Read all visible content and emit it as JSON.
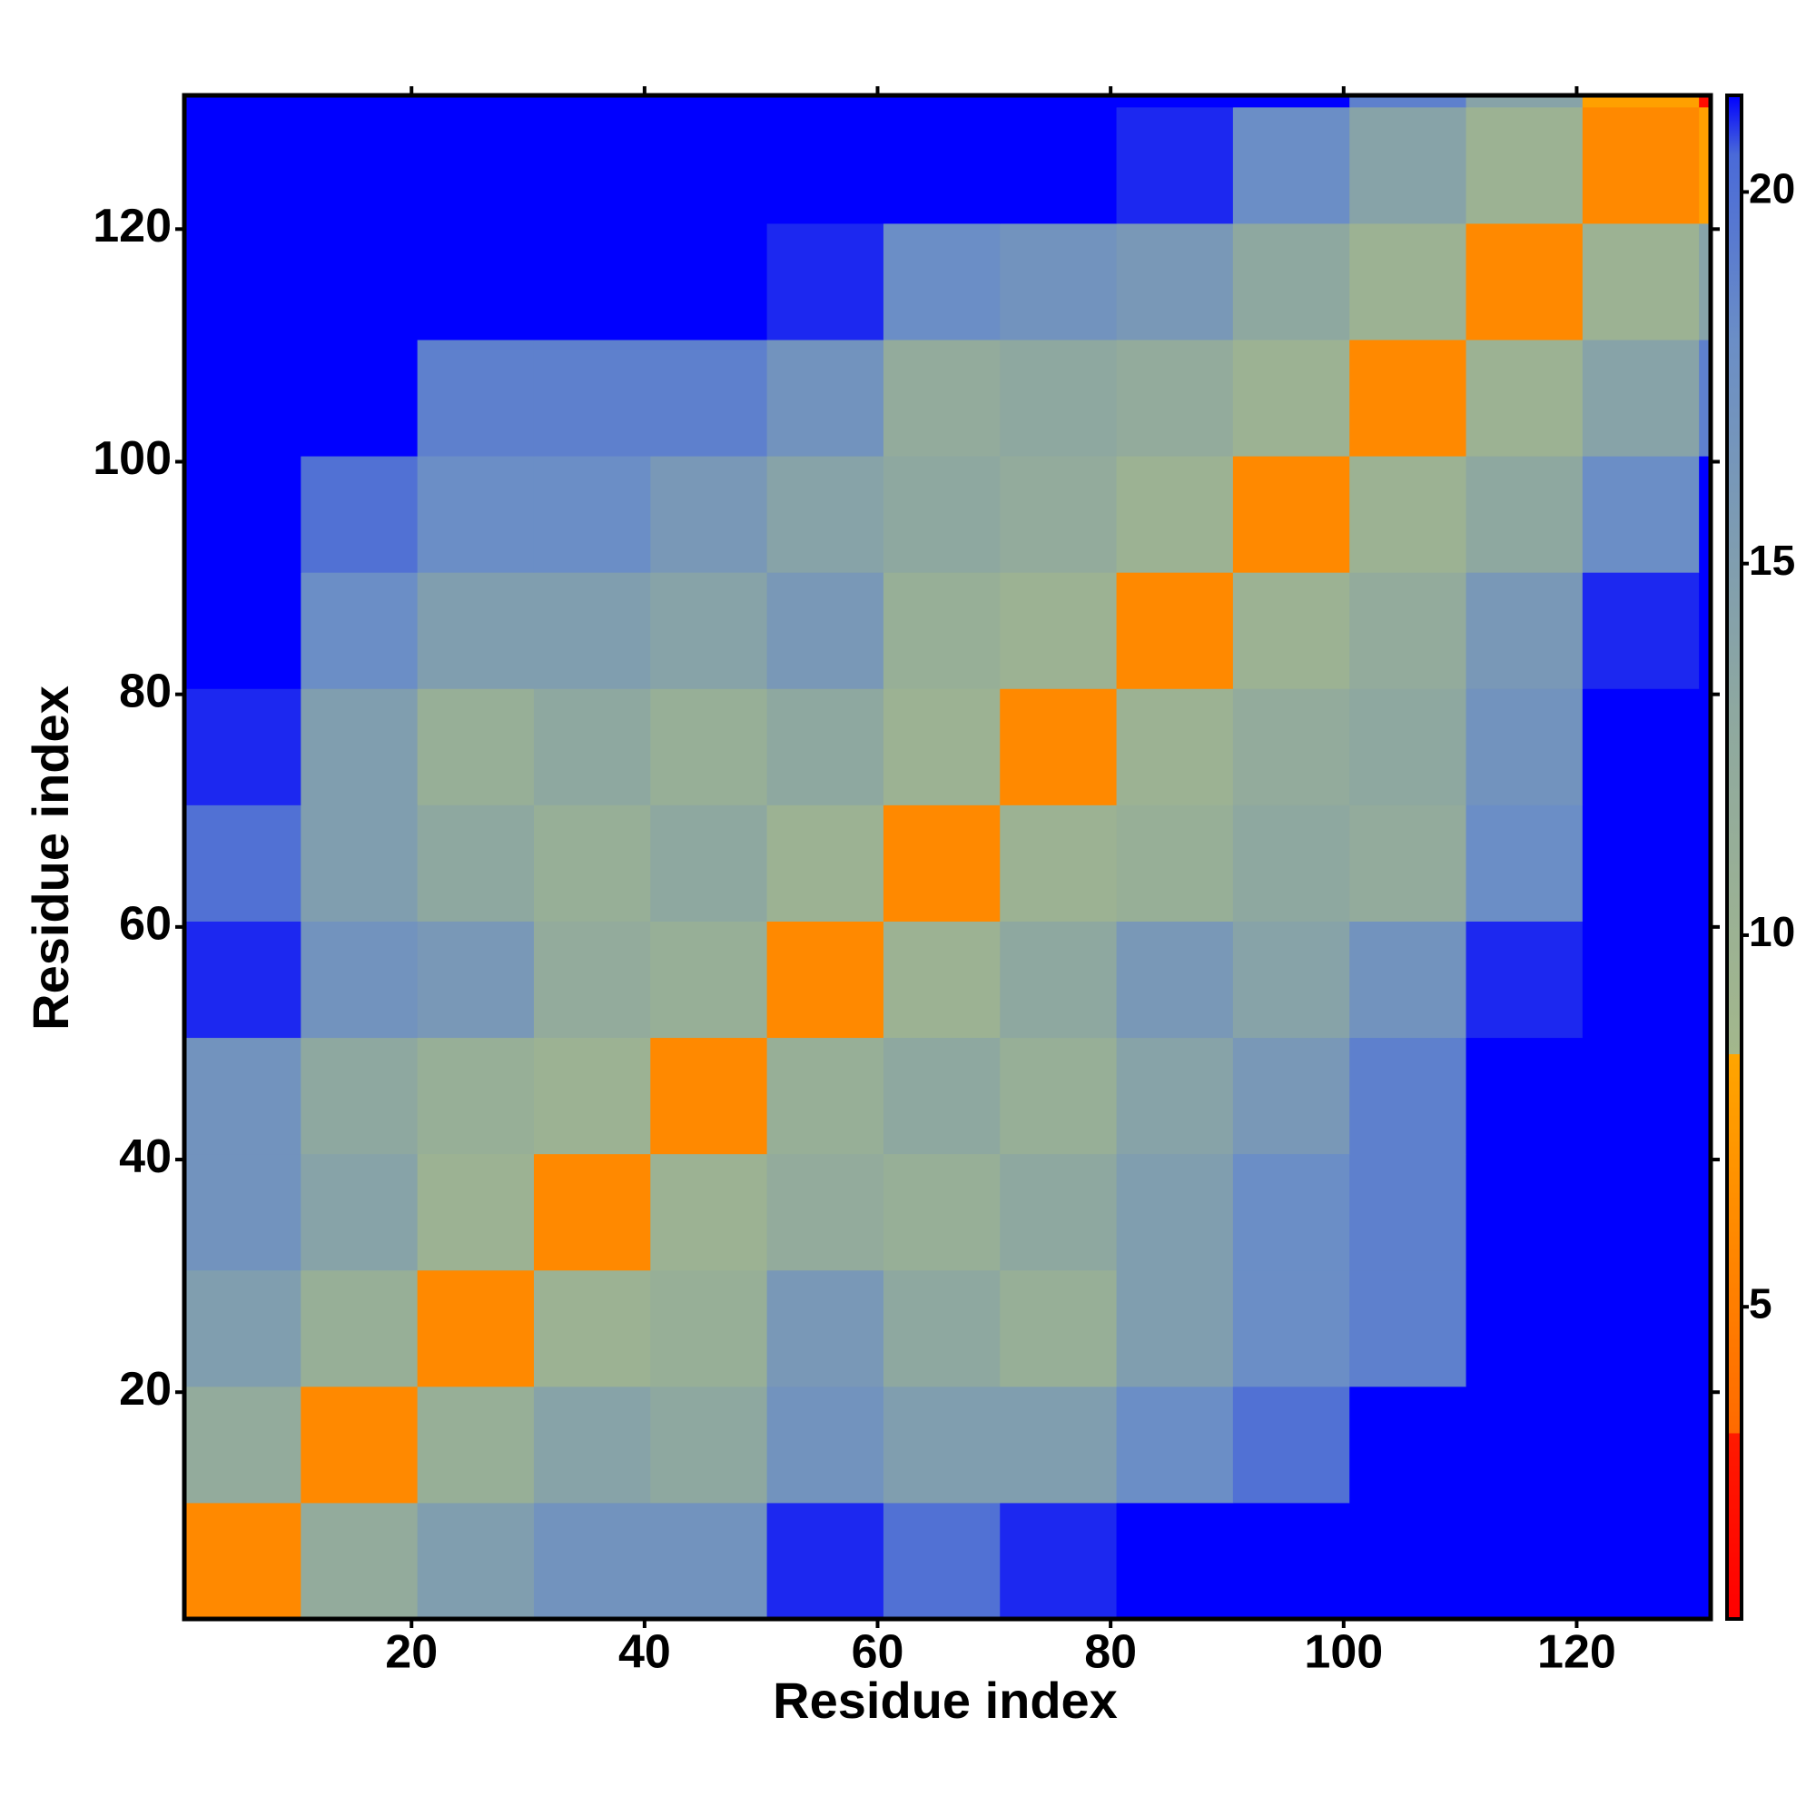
{
  "chart_data": {
    "type": "heatmap",
    "x_label": "Residue index",
    "y_label": "Residue index",
    "bins": [
      0.5,
      10.5,
      20.5,
      30.5,
      40.5,
      50.5,
      60.5,
      70.5,
      80.5,
      90.5,
      100.5,
      110.5,
      120.5,
      130.5,
      131.5
    ],
    "z": [
      [
        6,
        12,
        15,
        17,
        17,
        21,
        20,
        21,
        22,
        22,
        22,
        22,
        22,
        22
      ],
      [
        12,
        6,
        11,
        14,
        13,
        17,
        15,
        15,
        18,
        20,
        22,
        22,
        22,
        22
      ],
      [
        15,
        11,
        6,
        10,
        11,
        16,
        13,
        11,
        15,
        18,
        19,
        22,
        22,
        22
      ],
      [
        17,
        14,
        10,
        6,
        10,
        12,
        11,
        13,
        15,
        18,
        19,
        22,
        22,
        22
      ],
      [
        17,
        13,
        11,
        10,
        6,
        11,
        13,
        11,
        14,
        16,
        19,
        22,
        22,
        22
      ],
      [
        21,
        17,
        16,
        12,
        11,
        6,
        10,
        13,
        16,
        14,
        17,
        21,
        22,
        22
      ],
      [
        20,
        15,
        13,
        11,
        13,
        10,
        6,
        10,
        11,
        13,
        12,
        18,
        22,
        22
      ],
      [
        21,
        15,
        11,
        13,
        11,
        13,
        10,
        6,
        10,
        12,
        13,
        17,
        22,
        22
      ],
      [
        22,
        18,
        15,
        15,
        14,
        16,
        11,
        10,
        6,
        10,
        12,
        16,
        21,
        22
      ],
      [
        22,
        20,
        18,
        18,
        16,
        14,
        13,
        12,
        10,
        6,
        10,
        13,
        18,
        22
      ],
      [
        22,
        22,
        19,
        19,
        19,
        17,
        12,
        13,
        12,
        10,
        6,
        10,
        14,
        19
      ],
      [
        22,
        22,
        22,
        22,
        22,
        21,
        18,
        17,
        16,
        13,
        10,
        6,
        10,
        14
      ],
      [
        22,
        22,
        22,
        22,
        22,
        22,
        22,
        22,
        21,
        18,
        14,
        10,
        6,
        8
      ],
      [
        22,
        22,
        22,
        22,
        22,
        22,
        22,
        22,
        22,
        22,
        19,
        14,
        8,
        2
      ]
    ],
    "xlim": [
      0.5,
      131.5
    ],
    "ylim": [
      0.5,
      131.5
    ],
    "xticks": [
      20,
      40,
      60,
      80,
      100,
      120
    ],
    "yticks": [
      20,
      40,
      60,
      80,
      100,
      120
    ],
    "colorbar": {
      "lim": [
        0.8,
        21.3
      ],
      "ticks": [
        5,
        10,
        15,
        20
      ],
      "stops": [
        {
          "value": 0.8,
          "color": "#ff0000"
        },
        {
          "value": 3.3,
          "color": "#ff1a00"
        },
        {
          "value": 3.3,
          "color": "#ff6a00"
        },
        {
          "value": 8.4,
          "color": "#ffa500"
        },
        {
          "value": 8.4,
          "color": "#a3b78c"
        },
        {
          "value": 13,
          "color": "#8ea8a0"
        },
        {
          "value": 18,
          "color": "#6b8ec6"
        },
        {
          "value": 20.5,
          "color": "#4a6ad8"
        },
        {
          "value": 21.3,
          "color": "#0000ff"
        }
      ]
    }
  }
}
